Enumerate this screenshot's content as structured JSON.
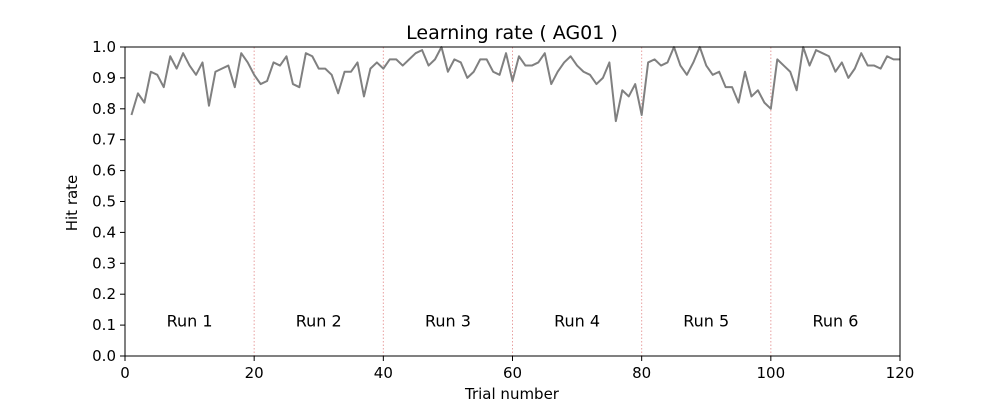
{
  "chart_data": {
    "type": "line",
    "title": "Learning rate ( AG01 )",
    "xlabel": "Trial number",
    "ylabel": "Hit rate",
    "xlim": [
      0,
      120
    ],
    "ylim": [
      0.0,
      1.0
    ],
    "xticks": [
      0,
      20,
      40,
      60,
      80,
      100,
      120
    ],
    "xtick_labels": [
      "0",
      "20",
      "40",
      "60",
      "80",
      "100",
      "120"
    ],
    "yticks": [
      0.0,
      0.1,
      0.2,
      0.3,
      0.4,
      0.5,
      0.6,
      0.7,
      0.8,
      0.9,
      1.0
    ],
    "ytick_labels": [
      "0.0",
      "0.1",
      "0.2",
      "0.3",
      "0.4",
      "0.5",
      "0.6",
      "0.7",
      "0.8",
      "0.9",
      "1.0"
    ],
    "grid": false,
    "line_color": "#808080",
    "divider_color": "#e8a0a0",
    "run_dividers": [
      20,
      40,
      60,
      80,
      100
    ],
    "run_labels": [
      {
        "text": "Run 1",
        "x": 10,
        "y": 0.115
      },
      {
        "text": "Run 2",
        "x": 30,
        "y": 0.115
      },
      {
        "text": "Run 3",
        "x": 50,
        "y": 0.115
      },
      {
        "text": "Run 4",
        "x": 70,
        "y": 0.115
      },
      {
        "text": "Run 5",
        "x": 90,
        "y": 0.115
      },
      {
        "text": "Run 6",
        "x": 110,
        "y": 0.115
      }
    ],
    "series": [
      {
        "x": [
          1,
          2,
          3,
          4,
          5,
          6,
          7,
          8,
          9,
          10,
          11,
          12,
          13,
          14,
          15,
          16,
          17,
          18,
          19,
          20,
          21,
          22,
          23,
          24,
          25,
          26,
          27,
          28,
          29,
          30,
          31,
          32,
          33,
          34,
          35,
          36,
          37,
          38,
          39,
          40,
          41,
          42,
          43,
          44,
          45,
          46,
          47,
          48,
          49,
          50,
          51,
          52,
          53,
          54,
          55,
          56,
          57,
          58,
          59,
          60,
          61,
          62,
          63,
          64,
          65,
          66,
          67,
          68,
          69,
          70,
          71,
          72,
          73,
          74,
          75,
          76,
          77,
          78,
          79,
          80,
          81,
          82,
          83,
          84,
          85,
          86,
          87,
          88,
          89,
          90,
          91,
          92,
          93,
          94,
          95,
          96,
          97,
          98,
          99,
          100,
          101,
          102,
          103,
          104,
          105,
          106,
          107,
          108,
          109,
          110,
          111,
          112,
          113,
          114,
          115,
          116,
          117,
          118,
          119,
          120
        ],
        "values": [
          0.78,
          0.85,
          0.82,
          0.92,
          0.91,
          0.87,
          0.97,
          0.93,
          0.98,
          0.94,
          0.91,
          0.95,
          0.81,
          0.92,
          0.93,
          0.94,
          0.87,
          0.98,
          0.95,
          0.91,
          0.88,
          0.89,
          0.95,
          0.94,
          0.97,
          0.88,
          0.87,
          0.98,
          0.97,
          0.93,
          0.93,
          0.91,
          0.85,
          0.92,
          0.92,
          0.95,
          0.84,
          0.93,
          0.95,
          0.93,
          0.96,
          0.96,
          0.94,
          0.96,
          0.98,
          0.99,
          0.94,
          0.96,
          1.0,
          0.92,
          0.96,
          0.95,
          0.9,
          0.92,
          0.96,
          0.96,
          0.92,
          0.91,
          0.98,
          0.89,
          0.97,
          0.94,
          0.94,
          0.95,
          0.98,
          0.88,
          0.92,
          0.95,
          0.97,
          0.94,
          0.92,
          0.91,
          0.88,
          0.9,
          0.95,
          0.76,
          0.86,
          0.84,
          0.88,
          0.78,
          0.95,
          0.96,
          0.94,
          0.95,
          1.0,
          0.94,
          0.91,
          0.95,
          1.0,
          0.94,
          0.91,
          0.92,
          0.87,
          0.87,
          0.82,
          0.92,
          0.84,
          0.86,
          0.82,
          0.8,
          0.96,
          0.94,
          0.92,
          0.86,
          1.0,
          0.94,
          0.99,
          0.98,
          0.97,
          0.92,
          0.95,
          0.9,
          0.93,
          0.98,
          0.94,
          0.94,
          0.93,
          0.97,
          0.96,
          0.96
        ]
      }
    ]
  }
}
